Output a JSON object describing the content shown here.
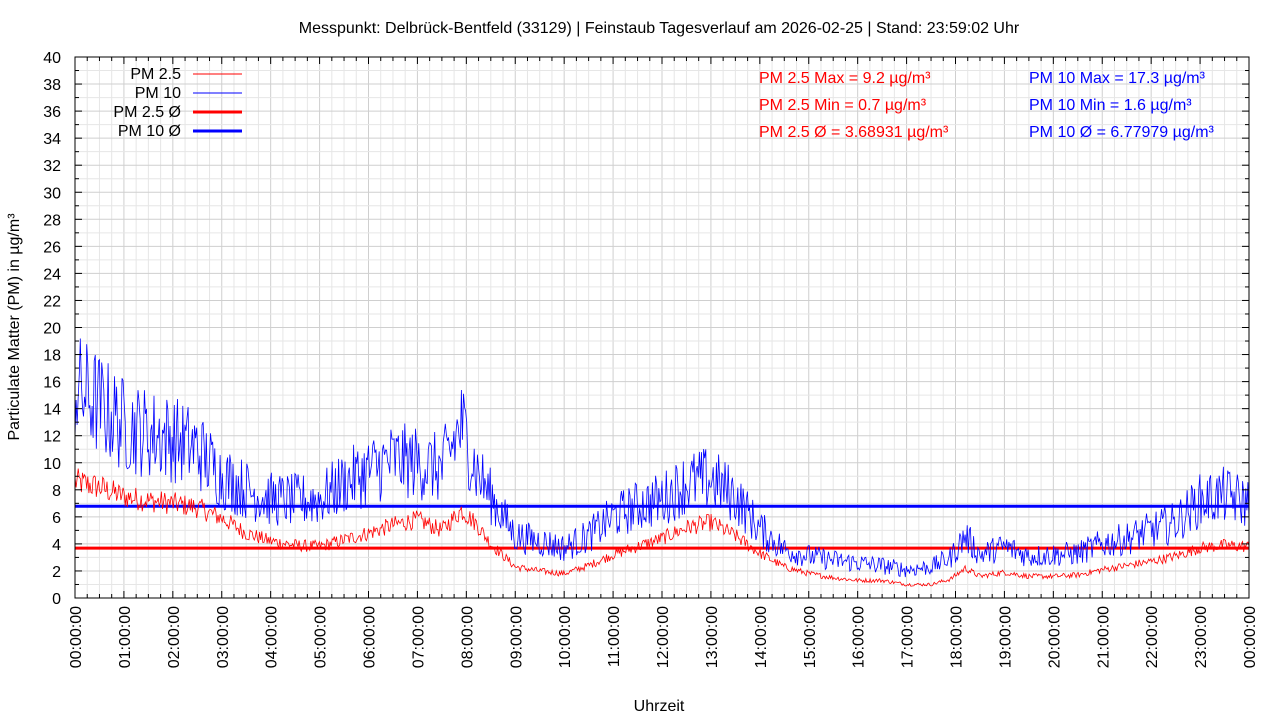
{
  "chart_data": {
    "type": "line",
    "title": "Messpunkt: Delbrück-Bentfeld (33129) | Feinstaub Tagesverlauf am 2026-02-25 | Stand: 23:59:02 Uhr",
    "xlabel": "Uhrzeit",
    "ylabel": "Particulate Matter (PM) in µg/m³",
    "ylim": [
      0,
      40
    ],
    "xlim": [
      "00:00:00",
      "24:00:00"
    ],
    "grid": true,
    "legend_position": "top-left",
    "y_ticks": [
      "0",
      "2",
      "4",
      "6",
      "8",
      "10",
      "12",
      "14",
      "16",
      "18",
      "20",
      "22",
      "24",
      "26",
      "28",
      "30",
      "32",
      "34",
      "36",
      "38",
      "40"
    ],
    "x_ticks": [
      "00:00:00",
      "01:00:00",
      "02:00:00",
      "03:00:00",
      "04:00:00",
      "05:00:00",
      "06:00:00",
      "07:00:00",
      "08:00:00",
      "09:00:00",
      "10:00:00",
      "11:00:00",
      "12:00:00",
      "13:00:00",
      "14:00:00",
      "15:00:00",
      "16:00:00",
      "17:00:00",
      "18:00:00",
      "19:00:00",
      "20:00:00",
      "21:00:00",
      "22:00:00",
      "23:00:00",
      "00:00:00"
    ],
    "series": [
      {
        "name": "PM 2.5",
        "color": "#ff0000",
        "style": "thin",
        "x": [
          0,
          0.5,
          1,
          1.5,
          2,
          2.5,
          3,
          3.5,
          4,
          4.5,
          5,
          5.5,
          6,
          6.5,
          7,
          7.5,
          7.9,
          8.2,
          8.5,
          9,
          9.5,
          10,
          10.5,
          11,
          11.5,
          12,
          12.5,
          13,
          13.5,
          14,
          14.5,
          15,
          15.5,
          16,
          16.5,
          17,
          17.5,
          17.9,
          18.2,
          18.5,
          19,
          19.5,
          20,
          20.5,
          21,
          21.5,
          22,
          22.5,
          23,
          23.5,
          24
        ],
        "values": [
          8.6,
          8.2,
          7.5,
          7.2,
          7.0,
          6.7,
          5.9,
          4.8,
          4.2,
          3.9,
          3.8,
          4.3,
          4.8,
          5.4,
          5.8,
          5.0,
          6.5,
          5.5,
          4.0,
          2.3,
          2.0,
          1.8,
          2.4,
          3.2,
          3.8,
          4.4,
          5.2,
          5.6,
          4.6,
          3.3,
          2.3,
          1.8,
          1.5,
          1.3,
          1.3,
          1.0,
          1.0,
          1.4,
          2.2,
          1.6,
          1.9,
          1.6,
          1.6,
          1.7,
          2.1,
          2.4,
          2.7,
          3.1,
          3.7,
          3.9,
          3.8
        ]
      },
      {
        "name": "PM 10",
        "color": "#0000ff",
        "style": "thin",
        "x": [
          0,
          0.5,
          1,
          1.5,
          2,
          2.5,
          3,
          3.5,
          4,
          4.5,
          5,
          5.5,
          6,
          6.5,
          7,
          7.5,
          7.9,
          8.2,
          8.5,
          9,
          9.5,
          10,
          10.5,
          11,
          11.5,
          12,
          12.5,
          13,
          13.5,
          14,
          14.5,
          15,
          15.5,
          16,
          16.5,
          17,
          17.5,
          17.9,
          18.2,
          18.5,
          19,
          19.5,
          20,
          20.5,
          21,
          21.5,
          22,
          22.5,
          23,
          23.5,
          24
        ],
        "values": [
          15.5,
          14.3,
          12.8,
          12.2,
          11.8,
          11.0,
          9.0,
          8.0,
          7.3,
          7.2,
          7.3,
          8.5,
          9.4,
          10.2,
          10.0,
          9.5,
          12.8,
          9.5,
          7.5,
          4.6,
          4.2,
          3.7,
          4.6,
          6.0,
          6.8,
          7.3,
          8.5,
          8.8,
          7.5,
          5.1,
          3.6,
          3.1,
          2.8,
          2.6,
          2.4,
          2.1,
          2.3,
          3.0,
          4.6,
          3.2,
          3.8,
          3.1,
          3.2,
          3.3,
          4.0,
          4.4,
          5.0,
          5.6,
          7.2,
          7.6,
          7.0
        ]
      },
      {
        "name": "PM 2.5 Ø",
        "color": "#ff0000",
        "style": "mean",
        "mean": 3.68931
      },
      {
        "name": "PM 10 Ø",
        "color": "#0000ff",
        "style": "mean",
        "mean": 6.77979
      }
    ],
    "stats": {
      "pm25": {
        "color": "#ff0000",
        "lines": [
          "PM 2.5 Max = 9.2 µg/m³",
          "PM 2.5 Min = 0.7 µg/m³",
          "PM 2.5 Ø = 3.68931 µg/m³"
        ]
      },
      "pm10": {
        "color": "#0000ff",
        "lines": [
          "PM 10 Max = 17.3 µg/m³",
          "PM 10 Min = 1.6 µg/m³",
          "PM 10 Ø = 6.77979 µg/m³"
        ]
      }
    }
  }
}
